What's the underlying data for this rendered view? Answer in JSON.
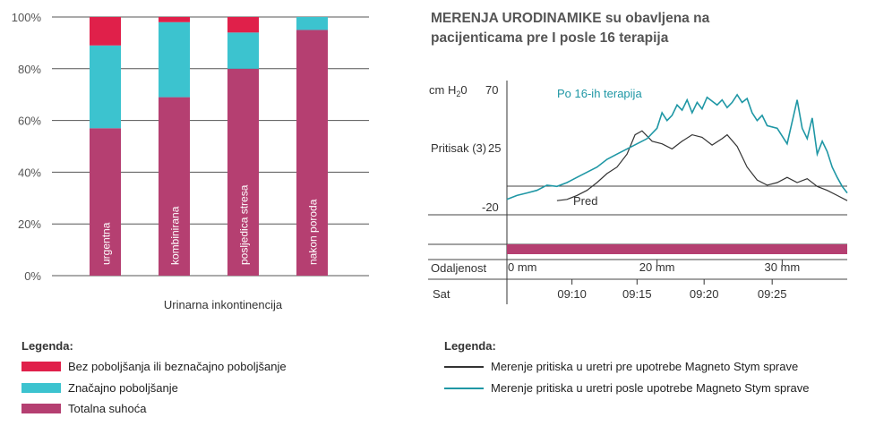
{
  "chart_data": [
    {
      "type": "bar",
      "stacked": true,
      "xlabel": "Urinarna inkontinencija",
      "ylim": [
        0,
        100
      ],
      "yticks": [
        "0%",
        "20%",
        "40%",
        "60%",
        "80%",
        "100%"
      ],
      "categories": [
        "urgentna",
        "kombinirana",
        "posljedica stresa",
        "nakon poroda"
      ],
      "series": [
        {
          "name": "Totalna suhoća",
          "color": "#B53F71",
          "values": [
            57,
            69,
            80,
            95
          ]
        },
        {
          "name": "Značajno poboljšanje",
          "color": "#3CC3CF",
          "values": [
            32,
            29,
            14,
            5
          ]
        },
        {
          "name": "Bez poboljšanja ili beznačajno poboljšanje",
          "color": "#E0204A",
          "values": [
            11,
            2,
            6,
            0
          ]
        }
      ],
      "grid": true,
      "legend": {
        "title": "Legenda:",
        "items": [
          "Bez poboljšanja ili beznačajno poboljšanje",
          "Značajno poboljšanje",
          "Totalna suhoća"
        ]
      }
    },
    {
      "type": "line",
      "title_line1": "MERENJA URODINAMIKE su obavljena na",
      "title_line2": "pacijenticama pre I posle 16 terapija",
      "y_unit": "cm H",
      "y_unit_sub": "2",
      "y_unit_end": "0",
      "y_name": "Pritisak (3)",
      "yticks": [
        "70",
        "25",
        "-20"
      ],
      "ylim": [
        -20,
        70
      ],
      "xlim": [
        0,
        34
      ],
      "row_distance_label": "Odaljenost",
      "distance_ticks": [
        "0 mm",
        "20 mm",
        "30 mm"
      ],
      "distance_tick_values": [
        0,
        15,
        27.5
      ],
      "row_time_label": "Sat",
      "time_ticks": [
        "09:10",
        "09:15",
        "09:20",
        "09:25"
      ],
      "time_tick_values": [
        6.5,
        13,
        19.7,
        26.5
      ],
      "annotations": {
        "after": "Po 16-ih terapija",
        "before": "Pred"
      },
      "series": [
        {
          "name": "Pred",
          "color": "#333333",
          "x": [
            5,
            6,
            7,
            8,
            9,
            10,
            11,
            12,
            12.8,
            13.5,
            14.5,
            15.5,
            16.5,
            17.5,
            18.5,
            19.5,
            20.5,
            21.5,
            22,
            23,
            24,
            25,
            26,
            27,
            28,
            29,
            30,
            31,
            32,
            33,
            34
          ],
          "y": [
            -16,
            -15,
            -12,
            -8,
            -2,
            5,
            10,
            20,
            35,
            38,
            30,
            28,
            24,
            30,
            35,
            33,
            27,
            32,
            35,
            26,
            10,
            0,
            -4,
            -2,
            2,
            -2,
            1,
            -5,
            -8,
            -12,
            -16
          ]
        },
        {
          "name": "Po 16-ih terapija",
          "color": "#1F97A5",
          "x": [
            0,
            1,
            2,
            3,
            4,
            5,
            6,
            7,
            8,
            9,
            10,
            11,
            12,
            13,
            14,
            15,
            15.5,
            16,
            16.5,
            17,
            17.5,
            18,
            18.5,
            19,
            19.5,
            20,
            21,
            21.5,
            22,
            22.5,
            23,
            23.5,
            24,
            24.5,
            25,
            25.5,
            26,
            27,
            28,
            29,
            29.5,
            30,
            30.5,
            31,
            31.5,
            32,
            32.5,
            33,
            33.5,
            34
          ],
          "y": [
            -15,
            -12,
            -10,
            -8,
            -4,
            -5,
            -2,
            2,
            6,
            10,
            16,
            20,
            24,
            28,
            32,
            40,
            52,
            46,
            50,
            58,
            54,
            62,
            52,
            60,
            55,
            64,
            58,
            62,
            56,
            60,
            66,
            60,
            63,
            52,
            46,
            50,
            42,
            40,
            28,
            62,
            40,
            32,
            48,
            20,
            30,
            22,
            10,
            2,
            -5,
            -10
          ]
        }
      ],
      "legend": {
        "title": "Legenda:",
        "items": [
          "Merenje pritiska u uretri pre upotrebe Magneto Stym sprave",
          "Merenje pritiska u uretri posle upotrebe Magneto Stym sprave"
        ]
      }
    }
  ]
}
